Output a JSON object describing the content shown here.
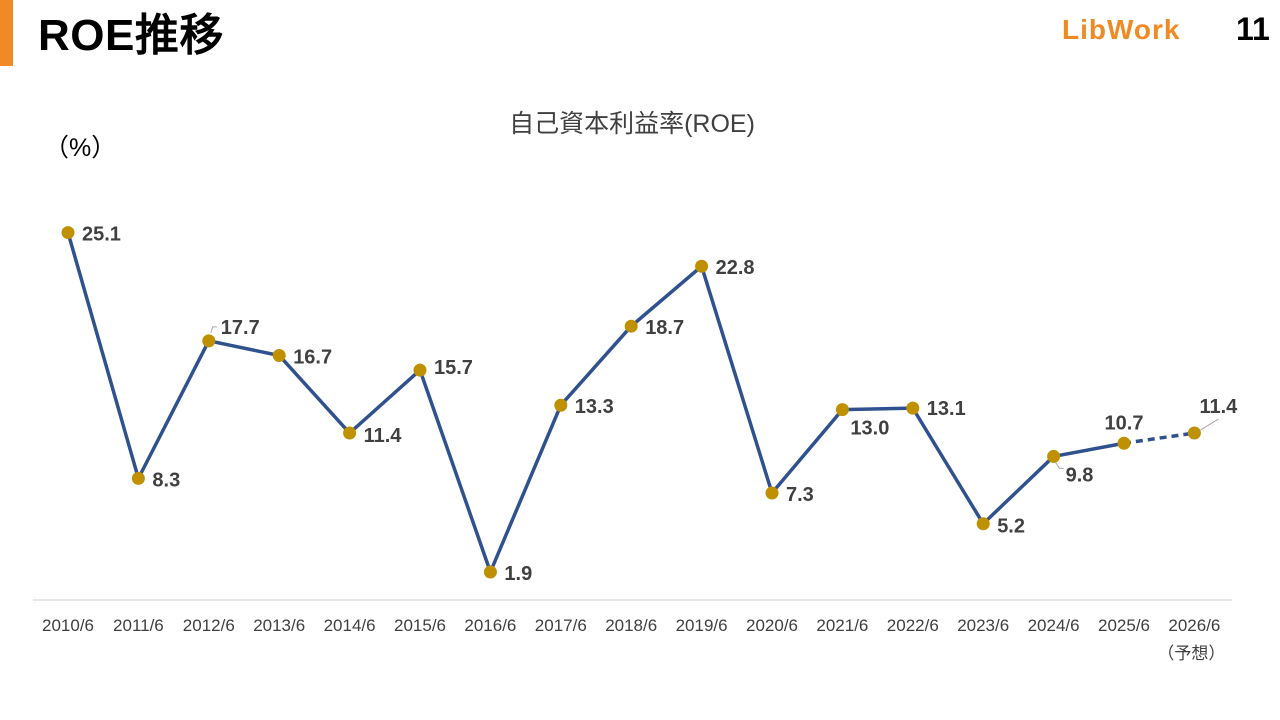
{
  "header": {
    "title": "ROE推移",
    "logo_text": "LibWork",
    "page_number": "11",
    "accent_color": "#f08a24"
  },
  "chart_data": {
    "type": "line",
    "title": "自己資本利益率(ROE)",
    "ylabel": "（%）",
    "xlabel": "",
    "categories": [
      "2010/6",
      "2011/6",
      "2012/6",
      "2013/6",
      "2014/6",
      "2015/6",
      "2016/6",
      "2017/6",
      "2018/6",
      "2019/6",
      "2020/6",
      "2021/6",
      "2022/6",
      "2023/6",
      "2024/6",
      "2025/6",
      "2026/6"
    ],
    "values": [
      25.1,
      8.3,
      17.7,
      16.7,
      11.4,
      15.7,
      1.9,
      13.3,
      18.7,
      22.8,
      7.3,
      13.0,
      13.1,
      5.2,
      9.8,
      10.7,
      11.4
    ],
    "value_labels": [
      "25.1",
      "8.3",
      "17.7",
      "16.7",
      "11.4",
      "15.7",
      "1.9",
      "13.3",
      "18.7",
      "22.8",
      "7.3",
      "13.0",
      "13.1",
      "5.2",
      "9.8",
      "10.7",
      "11.4"
    ],
    "forecast_note": "（予想）",
    "forecast_from_index": 15,
    "line_color": "#2f528f",
    "marker_color": "#bf9000",
    "grid": false,
    "legend": "none"
  }
}
